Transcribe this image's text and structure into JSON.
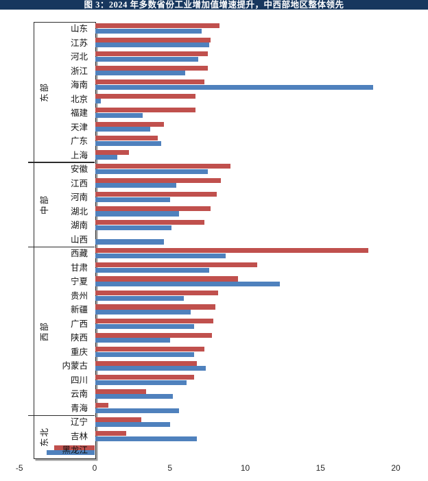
{
  "title": "图 3：2024 年多数省份工业增加值增速提升，中西部地区整体领先",
  "colors": {
    "title_bar": "#17375E",
    "title_text": "#FFFFFF",
    "bar_red": "#C0504D",
    "bar_blue": "#4F81BD",
    "axis_border": "#2B2B2B",
    "box_shadow": "#A0A0A0"
  },
  "chart_data": {
    "type": "bar",
    "orientation": "horizontal",
    "title": "图 3：2024 年多数省份工业增加值增速提升，中西部地区整体领先",
    "xlabel": "",
    "ylabel": "",
    "xlim": [
      -5,
      20
    ],
    "x_ticks": [
      -5,
      0,
      5,
      10,
      15,
      20
    ],
    "grid": false,
    "legend": "none",
    "series_names": [
      "red-series",
      "blue-series"
    ],
    "groups": [
      {
        "region": "东部",
        "rows": [
          {
            "name": "山东",
            "red": 8.3,
            "blue": 7.1
          },
          {
            "name": "江苏",
            "red": 7.7,
            "blue": 7.6
          },
          {
            "name": "河北",
            "red": 7.5,
            "blue": 6.9
          },
          {
            "name": "浙江",
            "red": 7.5,
            "blue": 6.0
          },
          {
            "name": "海南",
            "red": 7.3,
            "blue": 18.5
          },
          {
            "name": "北京",
            "red": 6.7,
            "blue": 0.4
          },
          {
            "name": "福建",
            "red": 6.7,
            "blue": 3.2
          },
          {
            "name": "天津",
            "red": 4.6,
            "blue": 3.7
          },
          {
            "name": "广东",
            "red": 4.2,
            "blue": 4.4
          },
          {
            "name": "上海",
            "red": 2.3,
            "blue": 1.5
          }
        ]
      },
      {
        "region": "中部",
        "rows": [
          {
            "name": "安徽",
            "red": 9.0,
            "blue": 7.5
          },
          {
            "name": "江西",
            "red": 8.4,
            "blue": 5.4
          },
          {
            "name": "河南",
            "red": 8.1,
            "blue": 5.0
          },
          {
            "name": "湖北",
            "red": 7.7,
            "blue": 5.6
          },
          {
            "name": "湖南",
            "red": 7.3,
            "blue": 5.1
          },
          {
            "name": "山西",
            "red": 0.0,
            "blue": 4.6
          }
        ]
      },
      {
        "region": "西部",
        "rows": [
          {
            "name": "西藏",
            "red": 18.2,
            "blue": 8.7
          },
          {
            "name": "甘肃",
            "red": 10.8,
            "blue": 7.6
          },
          {
            "name": "宁夏",
            "red": 9.5,
            "blue": 12.3
          },
          {
            "name": "贵州",
            "red": 8.2,
            "blue": 5.9
          },
          {
            "name": "新疆",
            "red": 8.0,
            "blue": 6.4
          },
          {
            "name": "广西",
            "red": 7.9,
            "blue": 6.6
          },
          {
            "name": "陕西",
            "red": 7.8,
            "blue": 5.0
          },
          {
            "name": "重庆",
            "red": 7.3,
            "blue": 6.6
          },
          {
            "name": "内蒙古",
            "red": 6.8,
            "blue": 7.4
          },
          {
            "name": "四川",
            "red": 6.6,
            "blue": 6.1
          },
          {
            "name": "云南",
            "red": 3.4,
            "blue": 5.2
          },
          {
            "name": "青海",
            "red": 0.9,
            "blue": 5.6
          }
        ]
      },
      {
        "region": "东北",
        "rows": [
          {
            "name": "辽宁",
            "red": 3.1,
            "blue": 5.0
          },
          {
            "name": "吉林",
            "red": 2.1,
            "blue": 6.8
          },
          {
            "name": "黑龙江",
            "red": -2.7,
            "blue": -3.2
          }
        ]
      }
    ]
  }
}
